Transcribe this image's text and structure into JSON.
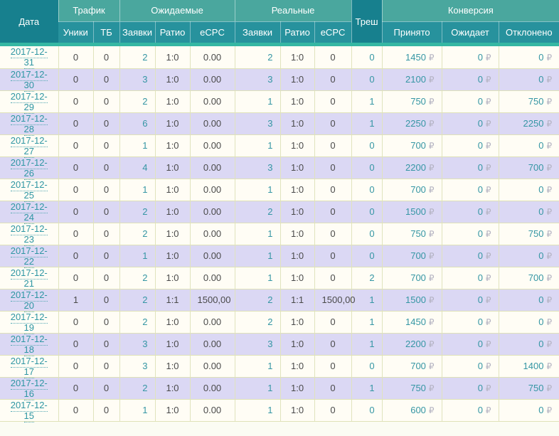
{
  "table": {
    "currency": "₽",
    "columns": {
      "date": "Дата",
      "traffic": "Трафик",
      "expected": "Ожидаемые",
      "real": "Реальные",
      "trash": "Треш",
      "conversion": "Конверсия",
      "uniques": "Уники",
      "tb": "ТБ",
      "leads": "Заявки",
      "ratio": "Ратио",
      "ecpc": "eCPC",
      "accepted": "Принято",
      "pending": "Ожидает",
      "rejected": "Отклонено"
    },
    "rows": [
      {
        "date": "2017-12-31",
        "uniques": "0",
        "tb": "0",
        "exp_leads": "2",
        "exp_ratio": "1:0",
        "exp_ecpc": "0.00",
        "real_leads": "2",
        "real_ratio": "1:0",
        "real_ecpc": "0",
        "trash": "0",
        "accepted": "1450",
        "pending": "0",
        "rejected": "0"
      },
      {
        "date": "2017-12-30",
        "uniques": "0",
        "tb": "0",
        "exp_leads": "3",
        "exp_ratio": "1:0",
        "exp_ecpc": "0.00",
        "real_leads": "3",
        "real_ratio": "1:0",
        "real_ecpc": "0",
        "trash": "0",
        "accepted": "2100",
        "pending": "0",
        "rejected": "0"
      },
      {
        "date": "2017-12-29",
        "uniques": "0",
        "tb": "0",
        "exp_leads": "2",
        "exp_ratio": "1:0",
        "exp_ecpc": "0.00",
        "real_leads": "1",
        "real_ratio": "1:0",
        "real_ecpc": "0",
        "trash": "1",
        "accepted": "750",
        "pending": "0",
        "rejected": "750"
      },
      {
        "date": "2017-12-28",
        "uniques": "0",
        "tb": "0",
        "exp_leads": "6",
        "exp_ratio": "1:0",
        "exp_ecpc": "0.00",
        "real_leads": "3",
        "real_ratio": "1:0",
        "real_ecpc": "0",
        "trash": "1",
        "accepted": "2250",
        "pending": "0",
        "rejected": "2250"
      },
      {
        "date": "2017-12-27",
        "uniques": "0",
        "tb": "0",
        "exp_leads": "1",
        "exp_ratio": "1:0",
        "exp_ecpc": "0.00",
        "real_leads": "1",
        "real_ratio": "1:0",
        "real_ecpc": "0",
        "trash": "0",
        "accepted": "700",
        "pending": "0",
        "rejected": "0"
      },
      {
        "date": "2017-12-26",
        "uniques": "0",
        "tb": "0",
        "exp_leads": "4",
        "exp_ratio": "1:0",
        "exp_ecpc": "0.00",
        "real_leads": "3",
        "real_ratio": "1:0",
        "real_ecpc": "0",
        "trash": "0",
        "accepted": "2200",
        "pending": "0",
        "rejected": "700"
      },
      {
        "date": "2017-12-25",
        "uniques": "0",
        "tb": "0",
        "exp_leads": "1",
        "exp_ratio": "1:0",
        "exp_ecpc": "0.00",
        "real_leads": "1",
        "real_ratio": "1:0",
        "real_ecpc": "0",
        "trash": "0",
        "accepted": "700",
        "pending": "0",
        "rejected": "0"
      },
      {
        "date": "2017-12-24",
        "uniques": "0",
        "tb": "0",
        "exp_leads": "2",
        "exp_ratio": "1:0",
        "exp_ecpc": "0.00",
        "real_leads": "2",
        "real_ratio": "1:0",
        "real_ecpc": "0",
        "trash": "0",
        "accepted": "1500",
        "pending": "0",
        "rejected": "0"
      },
      {
        "date": "2017-12-23",
        "uniques": "0",
        "tb": "0",
        "exp_leads": "2",
        "exp_ratio": "1:0",
        "exp_ecpc": "0.00",
        "real_leads": "1",
        "real_ratio": "1:0",
        "real_ecpc": "0",
        "trash": "0",
        "accepted": "750",
        "pending": "0",
        "rejected": "750"
      },
      {
        "date": "2017-12-22",
        "uniques": "0",
        "tb": "0",
        "exp_leads": "1",
        "exp_ratio": "1:0",
        "exp_ecpc": "0.00",
        "real_leads": "1",
        "real_ratio": "1:0",
        "real_ecpc": "0",
        "trash": "0",
        "accepted": "700",
        "pending": "0",
        "rejected": "0"
      },
      {
        "date": "2017-12-21",
        "uniques": "0",
        "tb": "0",
        "exp_leads": "2",
        "exp_ratio": "1:0",
        "exp_ecpc": "0.00",
        "real_leads": "1",
        "real_ratio": "1:0",
        "real_ecpc": "0",
        "trash": "2",
        "accepted": "700",
        "pending": "0",
        "rejected": "700"
      },
      {
        "date": "2017-12-20",
        "uniques": "1",
        "tb": "0",
        "exp_leads": "2",
        "exp_ratio": "1:1",
        "exp_ecpc": "1500,00",
        "real_leads": "2",
        "real_ratio": "1:1",
        "real_ecpc": "1500,00",
        "trash": "1",
        "accepted": "1500",
        "pending": "0",
        "rejected": "0"
      },
      {
        "date": "2017-12-19",
        "uniques": "0",
        "tb": "0",
        "exp_leads": "2",
        "exp_ratio": "1:0",
        "exp_ecpc": "0.00",
        "real_leads": "2",
        "real_ratio": "1:0",
        "real_ecpc": "0",
        "trash": "1",
        "accepted": "1450",
        "pending": "0",
        "rejected": "0"
      },
      {
        "date": "2017-12-18",
        "uniques": "0",
        "tb": "0",
        "exp_leads": "3",
        "exp_ratio": "1:0",
        "exp_ecpc": "0.00",
        "real_leads": "3",
        "real_ratio": "1:0",
        "real_ecpc": "0",
        "trash": "1",
        "accepted": "2200",
        "pending": "0",
        "rejected": "0"
      },
      {
        "date": "2017-12-17",
        "uniques": "0",
        "tb": "0",
        "exp_leads": "3",
        "exp_ratio": "1:0",
        "exp_ecpc": "0.00",
        "real_leads": "1",
        "real_ratio": "1:0",
        "real_ecpc": "0",
        "trash": "0",
        "accepted": "700",
        "pending": "0",
        "rejected": "1400"
      },
      {
        "date": "2017-12-16",
        "uniques": "0",
        "tb": "0",
        "exp_leads": "2",
        "exp_ratio": "1:0",
        "exp_ecpc": "0.00",
        "real_leads": "1",
        "real_ratio": "1:0",
        "real_ecpc": "0",
        "trash": "1",
        "accepted": "750",
        "pending": "0",
        "rejected": "750"
      },
      {
        "date": "2017-12-15",
        "uniques": "0",
        "tb": "0",
        "exp_leads": "1",
        "exp_ratio": "1:0",
        "exp_ecpc": "0.00",
        "real_leads": "1",
        "real_ratio": "1:0",
        "real_ecpc": "0",
        "trash": "0",
        "accepted": "600",
        "pending": "0",
        "rejected": "0"
      }
    ]
  }
}
